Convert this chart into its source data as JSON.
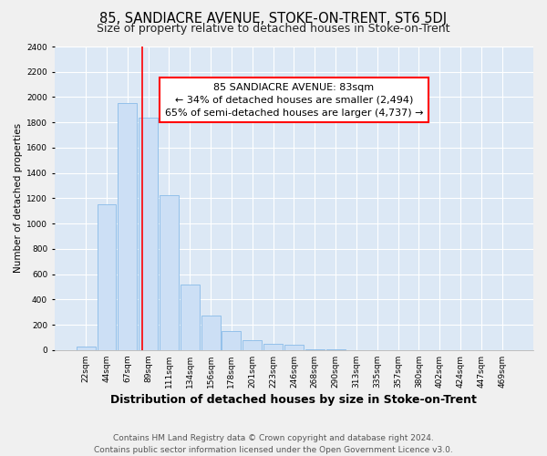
{
  "title": "85, SANDIACRE AVENUE, STOKE-ON-TRENT, ST6 5DJ",
  "subtitle": "Size of property relative to detached houses in Stoke-on-Trent",
  "xlabel": "Distribution of detached houses by size in Stoke-on-Trent",
  "ylabel": "Number of detached properties",
  "bar_labels": [
    "22sqm",
    "44sqm",
    "67sqm",
    "89sqm",
    "111sqm",
    "134sqm",
    "156sqm",
    "178sqm",
    "201sqm",
    "223sqm",
    "246sqm",
    "268sqm",
    "290sqm",
    "313sqm",
    "335sqm",
    "357sqm",
    "380sqm",
    "402sqm",
    "424sqm",
    "447sqm",
    "469sqm"
  ],
  "bar_values": [
    25,
    1155,
    1950,
    1840,
    1225,
    515,
    275,
    148,
    78,
    50,
    42,
    5,
    5,
    2,
    2,
    1,
    1,
    1,
    1,
    0,
    0
  ],
  "bar_color": "#ccdff5",
  "bar_edge_color": "#88bbe8",
  "grid_color": "#ffffff",
  "bg_color": "#dce8f5",
  "fig_bg_color": "#f0f0f0",
  "red_line_x": 2.73,
  "annotation_text": "85 SANDIACRE AVENUE: 83sqm\n← 34% of detached houses are smaller (2,494)\n65% of semi-detached houses are larger (4,737) →",
  "ylim": [
    0,
    2400
  ],
  "yticks": [
    0,
    200,
    400,
    600,
    800,
    1000,
    1200,
    1400,
    1600,
    1800,
    2000,
    2200,
    2400
  ],
  "footer_line1": "Contains HM Land Registry data © Crown copyright and database right 2024.",
  "footer_line2": "Contains public sector information licensed under the Open Government Licence v3.0.",
  "title_fontsize": 10.5,
  "subtitle_fontsize": 9,
  "xlabel_fontsize": 9,
  "ylabel_fontsize": 7.5,
  "tick_fontsize": 6.5,
  "footer_fontsize": 6.5,
  "annotation_fontsize": 8
}
